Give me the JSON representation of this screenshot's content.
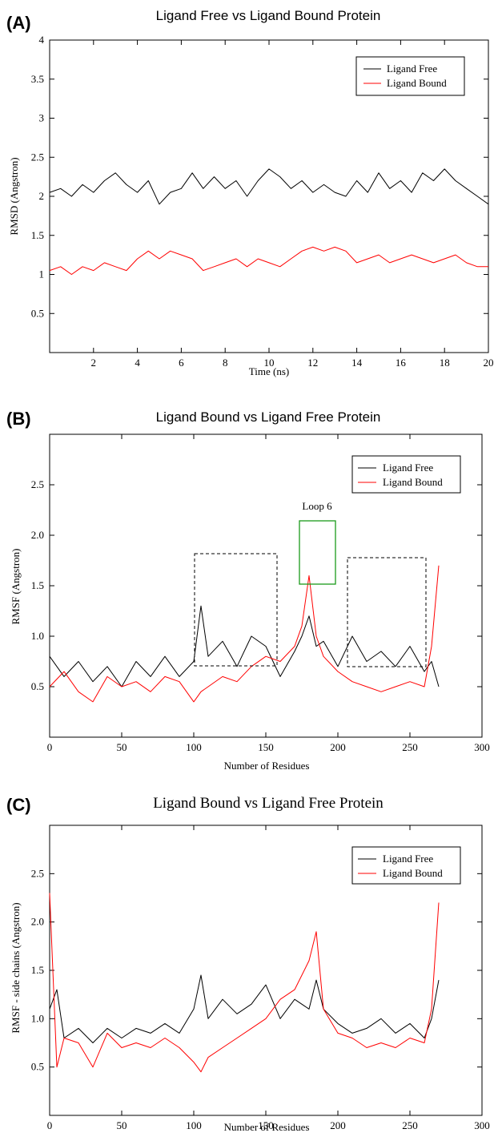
{
  "colors": {
    "free": "#000000",
    "bound": "#ff0000",
    "loop_box": "#1a9a1a"
  },
  "panels": [
    {
      "letter": "(A)"
    },
    {
      "letter": "(B)"
    },
    {
      "letter": "(C)"
    }
  ],
  "chart_data": [
    {
      "type": "line",
      "title": "Ligand Free vs Ligand Bound Protein",
      "xlabel": "Time (ns)",
      "ylabel": "RMSD (Angstron)",
      "xlim": [
        0,
        20
      ],
      "ylim": [
        0,
        4
      ],
      "xticks": [
        2,
        4,
        6,
        8,
        10,
        12,
        14,
        16,
        18,
        20
      ],
      "yticks": [
        0.5,
        1,
        1.5,
        2,
        2.5,
        3,
        3.5,
        4
      ],
      "ytick_labels": [
        "0.5",
        "1",
        "1.5",
        "2",
        "2.5",
        "3",
        "3.5",
        "4"
      ],
      "legend_position": "top-right",
      "series": [
        {
          "name": "Ligand Free",
          "color": "#000000",
          "x": [
            0,
            0.5,
            1,
            1.5,
            2,
            2.5,
            3,
            3.5,
            4,
            4.5,
            5,
            5.5,
            6,
            6.5,
            7,
            7.5,
            8,
            8.5,
            9,
            9.5,
            10,
            10.5,
            11,
            11.5,
            12,
            12.5,
            13,
            13.5,
            14,
            14.5,
            15,
            15.5,
            16,
            16.5,
            17,
            17.5,
            18,
            18.5,
            19,
            19.5,
            20
          ],
          "y": [
            2.05,
            2.1,
            2.0,
            2.15,
            2.05,
            2.2,
            2.3,
            2.15,
            2.05,
            2.2,
            1.9,
            2.05,
            2.1,
            2.3,
            2.1,
            2.25,
            2.1,
            2.2,
            2.0,
            2.2,
            2.35,
            2.25,
            2.1,
            2.2,
            2.05,
            2.15,
            2.05,
            2.0,
            2.2,
            2.05,
            2.3,
            2.1,
            2.2,
            2.05,
            2.3,
            2.2,
            2.35,
            2.2,
            2.1,
            2.0,
            1.9
          ]
        },
        {
          "name": "Ligand Bound",
          "color": "#ff0000",
          "x": [
            0,
            0.5,
            1,
            1.5,
            2,
            2.5,
            3,
            3.5,
            4,
            4.5,
            5,
            5.5,
            6,
            6.5,
            7,
            7.5,
            8,
            8.5,
            9,
            9.5,
            10,
            10.5,
            11,
            11.5,
            12,
            12.5,
            13,
            13.5,
            14,
            14.5,
            15,
            15.5,
            16,
            16.5,
            17,
            17.5,
            18,
            18.5,
            19,
            19.5,
            20
          ],
          "y": [
            1.05,
            1.1,
            1.0,
            1.1,
            1.05,
            1.15,
            1.1,
            1.05,
            1.2,
            1.3,
            1.2,
            1.3,
            1.25,
            1.2,
            1.05,
            1.1,
            1.15,
            1.2,
            1.1,
            1.2,
            1.15,
            1.1,
            1.2,
            1.3,
            1.35,
            1.3,
            1.35,
            1.3,
            1.15,
            1.2,
            1.25,
            1.15,
            1.2,
            1.25,
            1.2,
            1.15,
            1.2,
            1.25,
            1.15,
            1.1,
            1.1
          ]
        }
      ]
    },
    {
      "type": "line",
      "title": "Ligand Bound vs Ligand Free Protein",
      "xlabel": "Number of Residues",
      "ylabel": "RMSF (Angstron)",
      "xlim": [
        0,
        300
      ],
      "ylim": [
        0,
        3
      ],
      "xticks": [
        0,
        50,
        100,
        150,
        200,
        250,
        300
      ],
      "yticks": [
        0.5,
        1.0,
        1.5,
        2.0,
        2.5
      ],
      "ytick_labels": [
        "0.5",
        "1.0",
        "1.5",
        "2.0",
        "2.5"
      ],
      "legend_position": "top-right",
      "annotations": [
        {
          "text": "Loop 6"
        }
      ],
      "series": [
        {
          "name": "Ligand Free",
          "color": "#000000",
          "x": [
            0,
            10,
            20,
            30,
            40,
            50,
            60,
            70,
            80,
            90,
            100,
            105,
            110,
            120,
            130,
            140,
            150,
            160,
            170,
            175,
            180,
            185,
            190,
            200,
            210,
            220,
            230,
            240,
            250,
            260,
            265,
            270
          ],
          "y": [
            0.8,
            0.6,
            0.75,
            0.55,
            0.7,
            0.5,
            0.75,
            0.6,
            0.8,
            0.6,
            0.75,
            1.3,
            0.8,
            0.95,
            0.7,
            1.0,
            0.9,
            0.6,
            0.85,
            1.0,
            1.2,
            0.9,
            0.95,
            0.7,
            1.0,
            0.75,
            0.85,
            0.7,
            0.9,
            0.65,
            0.75,
            0.5
          ]
        },
        {
          "name": "Ligand Bound",
          "color": "#ff0000",
          "x": [
            0,
            10,
            20,
            30,
            40,
            50,
            60,
            70,
            80,
            90,
            100,
            105,
            110,
            120,
            130,
            140,
            150,
            160,
            170,
            175,
            180,
            185,
            190,
            200,
            210,
            220,
            230,
            240,
            250,
            260,
            265,
            270
          ],
          "y": [
            0.5,
            0.65,
            0.45,
            0.35,
            0.6,
            0.5,
            0.55,
            0.45,
            0.6,
            0.55,
            0.35,
            0.45,
            0.5,
            0.6,
            0.55,
            0.7,
            0.8,
            0.75,
            0.9,
            1.1,
            1.6,
            1.0,
            0.8,
            0.65,
            0.55,
            0.5,
            0.45,
            0.5,
            0.55,
            0.5,
            0.9,
            1.7
          ]
        }
      ]
    },
    {
      "type": "line",
      "title": "Ligand Bound vs Ligand Free Protein",
      "xlabel": "Number of Residues",
      "ylabel": "RMSF - side chains (Angstron)",
      "xlim": [
        0,
        300
      ],
      "ylim": [
        0,
        3
      ],
      "xticks": [
        0,
        50,
        100,
        150,
        200,
        250,
        300
      ],
      "yticks": [
        0.5,
        1.0,
        1.5,
        2.0,
        2.5
      ],
      "ytick_labels": [
        "0.5",
        "1.0",
        "1.5",
        "2.0",
        "2.5"
      ],
      "legend_position": "top-right",
      "series": [
        {
          "name": "Ligand Free",
          "color": "#000000",
          "x": [
            0,
            5,
            10,
            20,
            30,
            40,
            50,
            60,
            70,
            80,
            90,
            100,
            105,
            110,
            120,
            130,
            140,
            150,
            160,
            170,
            180,
            185,
            190,
            200,
            210,
            220,
            230,
            240,
            250,
            260,
            265,
            270
          ],
          "y": [
            1.1,
            1.3,
            0.8,
            0.9,
            0.75,
            0.9,
            0.8,
            0.9,
            0.85,
            0.95,
            0.85,
            1.1,
            1.45,
            1.0,
            1.2,
            1.05,
            1.15,
            1.35,
            1.0,
            1.2,
            1.1,
            1.4,
            1.1,
            0.95,
            0.85,
            0.9,
            1.0,
            0.85,
            0.95,
            0.8,
            1.0,
            1.4
          ]
        },
        {
          "name": "Ligand Bound",
          "color": "#ff0000",
          "x": [
            0,
            5,
            10,
            20,
            30,
            40,
            50,
            60,
            70,
            80,
            90,
            100,
            105,
            110,
            120,
            130,
            140,
            150,
            160,
            170,
            180,
            185,
            190,
            200,
            210,
            220,
            230,
            240,
            250,
            260,
            265,
            270
          ],
          "y": [
            2.3,
            0.5,
            0.8,
            0.75,
            0.5,
            0.85,
            0.7,
            0.75,
            0.7,
            0.8,
            0.7,
            0.55,
            0.45,
            0.6,
            0.7,
            0.8,
            0.9,
            1.0,
            1.2,
            1.3,
            1.6,
            1.9,
            1.1,
            0.85,
            0.8,
            0.7,
            0.75,
            0.7,
            0.8,
            0.75,
            1.1,
            2.2
          ]
        }
      ]
    }
  ]
}
